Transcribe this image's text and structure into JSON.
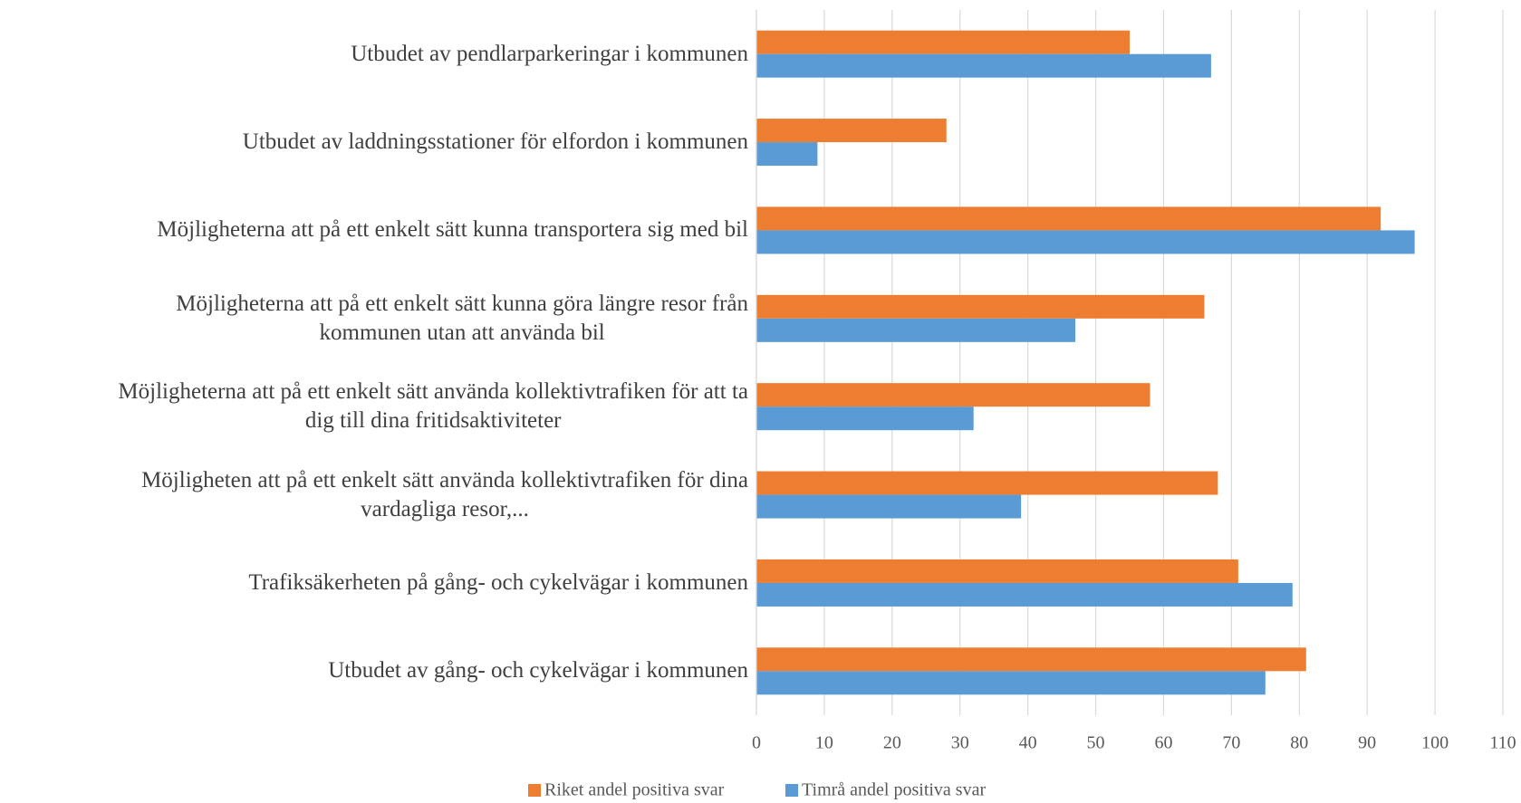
{
  "chart_data": {
    "type": "barh",
    "categories": [
      "Utbudet av pendlarparkeringar i kommunen",
      "Utbudet av laddningsstationer för elfordon i kommunen",
      "Möjligheterna att på ett enkelt sätt kunna transportera sig med bil",
      "Möjligheterna att på ett enkelt sätt kunna göra längre resor från\nkommunen utan att använda bil",
      "Möjligheterna att på ett enkelt sätt använda kollektivtrafiken för att ta\ndig till dina fritidsaktiviteter",
      "Möjligheten att på ett enkelt sätt använda kollektivtrafiken för dina\nvardagliga resor,...",
      "Trafiksäkerheten på gång- och cykelvägar i kommunen",
      "Utbudet av gång- och cykelvägar i kommunen"
    ],
    "series": [
      {
        "name": "Riket andel positiva svar",
        "color": "#ED7D31",
        "values": [
          55,
          28,
          92,
          66,
          58,
          68,
          71,
          81
        ]
      },
      {
        "name": "Timrå andel positiva svar",
        "color": "#5B9BD5",
        "values": [
          67,
          9,
          97,
          47,
          32,
          39,
          79,
          75
        ]
      }
    ],
    "xlim": [
      0,
      110
    ],
    "xticks": [
      0,
      10,
      20,
      30,
      40,
      50,
      60,
      70,
      80,
      90,
      100,
      110
    ],
    "grid": true,
    "legend": "bottom"
  }
}
